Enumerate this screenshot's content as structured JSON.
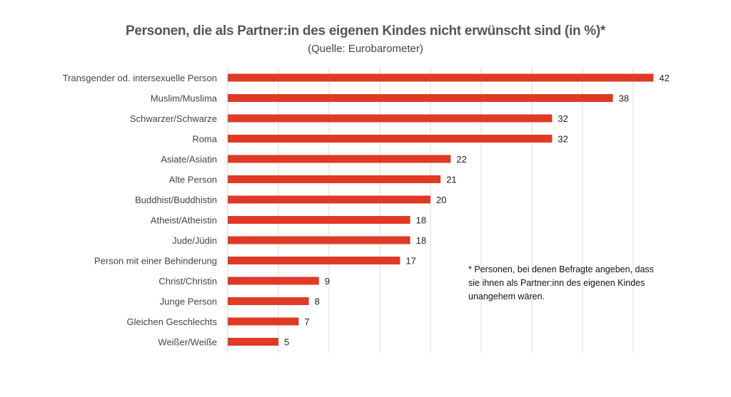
{
  "chart_data": {
    "type": "bar",
    "orientation": "horizontal",
    "title": "Personen, die als Partner:in des eigenen Kindes nicht erwünscht sind (in %)*",
    "subtitle": "(Quelle: Eurobarometer)",
    "categories": [
      "Transgender od. intersexuelle Person",
      "Muslim/Muslima",
      "Schwarzer/Schwarze",
      "Roma",
      "Asiate/Asiatin",
      "Alte Person",
      "Buddhist/Buddhistin",
      "Atheist/Atheistin",
      "Jude/Jüdin",
      "Person mit einer Behinderung",
      "Christ/Christin",
      "Junge Person",
      "Gleichen Geschlechts",
      "Weißer/Weiße"
    ],
    "values": [
      42,
      38,
      32,
      32,
      22,
      21,
      20,
      18,
      18,
      17,
      9,
      8,
      7,
      5
    ],
    "xlim": [
      0,
      45
    ],
    "grid": true,
    "bar_color": "#e03a25",
    "note": "* Personen, bei denen Befragte angeben, dass sie ihnen als Partner:inn des eigenen Kindes unangehem wären."
  }
}
